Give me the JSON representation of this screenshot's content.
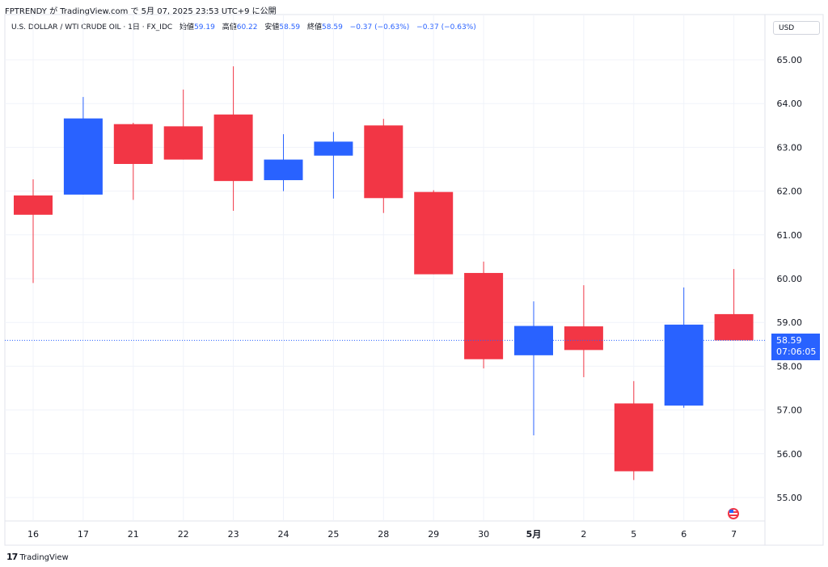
{
  "header": {
    "author": "FPTRENDY",
    "published_text": "が TradingView.com で 5月 07, 2025 23:53 UTC+9 に公開"
  },
  "legend": {
    "symbol": "U.S. DOLLAR / WTI CRUDE OIL · 1日 · FX_IDC",
    "open_label": "始値",
    "open_value": "59.19",
    "high_label": "高値",
    "high_value": "60.22",
    "low_label": "安値",
    "low_value": "58.59",
    "close_label": "終値",
    "close_value": "58.59",
    "change": "−0.37 (−0.63%)",
    "change2": "−0.37 (−0.63%)"
  },
  "currency_button": "USD",
  "price_tag": {
    "price": "58.59",
    "countdown": "07:06:05"
  },
  "footer": {
    "brand": "TradingView"
  },
  "colors": {
    "up": "#2962ff",
    "down": "#f23645",
    "grid": "#f0f3fa",
    "dotted": "#2962ff"
  },
  "chart_data": {
    "type": "candlestick",
    "currency": "USD",
    "ylim": [
      54.6,
      65.9
    ],
    "y_ticks": [
      "55.00",
      "56.00",
      "57.00",
      "58.00",
      "59.00",
      "60.00",
      "61.00",
      "62.00",
      "63.00",
      "64.00",
      "65.00"
    ],
    "categories": [
      "16",
      "17",
      "21",
      "22",
      "23",
      "24",
      "25",
      "28",
      "29",
      "30",
      "5月",
      "2",
      "5",
      "6",
      "7"
    ],
    "candles": [
      {
        "x": "16",
        "open": 61.9,
        "high": 62.27,
        "low": 59.9,
        "close": 61.46
      },
      {
        "x": "17",
        "open": 61.92,
        "high": 64.15,
        "low": 61.92,
        "close": 63.66
      },
      {
        "x": "21",
        "open": 63.53,
        "high": 63.56,
        "low": 61.8,
        "close": 62.62
      },
      {
        "x": "22",
        "open": 63.48,
        "high": 64.32,
        "low": 62.72,
        "close": 62.72
      },
      {
        "x": "23",
        "open": 63.75,
        "high": 64.85,
        "low": 61.55,
        "close": 62.23
      },
      {
        "x": "24",
        "open": 62.25,
        "high": 63.3,
        "low": 62.0,
        "close": 62.72
      },
      {
        "x": "25",
        "open": 62.81,
        "high": 63.35,
        "low": 61.83,
        "close": 63.13
      },
      {
        "x": "28",
        "open": 63.5,
        "high": 63.65,
        "low": 61.5,
        "close": 61.84
      },
      {
        "x": "29",
        "open": 61.98,
        "high": 62.02,
        "low": 60.1,
        "close": 60.1
      },
      {
        "x": "30",
        "open": 60.13,
        "high": 60.39,
        "low": 57.95,
        "close": 58.16
      },
      {
        "x": "5月",
        "open": 58.25,
        "high": 59.48,
        "low": 56.42,
        "close": 58.92
      },
      {
        "x": "2",
        "open": 58.91,
        "high": 59.85,
        "low": 57.75,
        "close": 58.37
      },
      {
        "x": "5",
        "open": 57.15,
        "high": 57.66,
        "low": 55.4,
        "close": 55.6
      },
      {
        "x": "6",
        "open": 57.1,
        "high": 59.8,
        "low": 57.05,
        "close": 58.95
      },
      {
        "x": "7",
        "open": 59.19,
        "high": 60.22,
        "low": 58.59,
        "close": 58.59
      }
    ],
    "last_price": 58.59,
    "bold_ticks": [
      "5月"
    ],
    "grid": true
  }
}
